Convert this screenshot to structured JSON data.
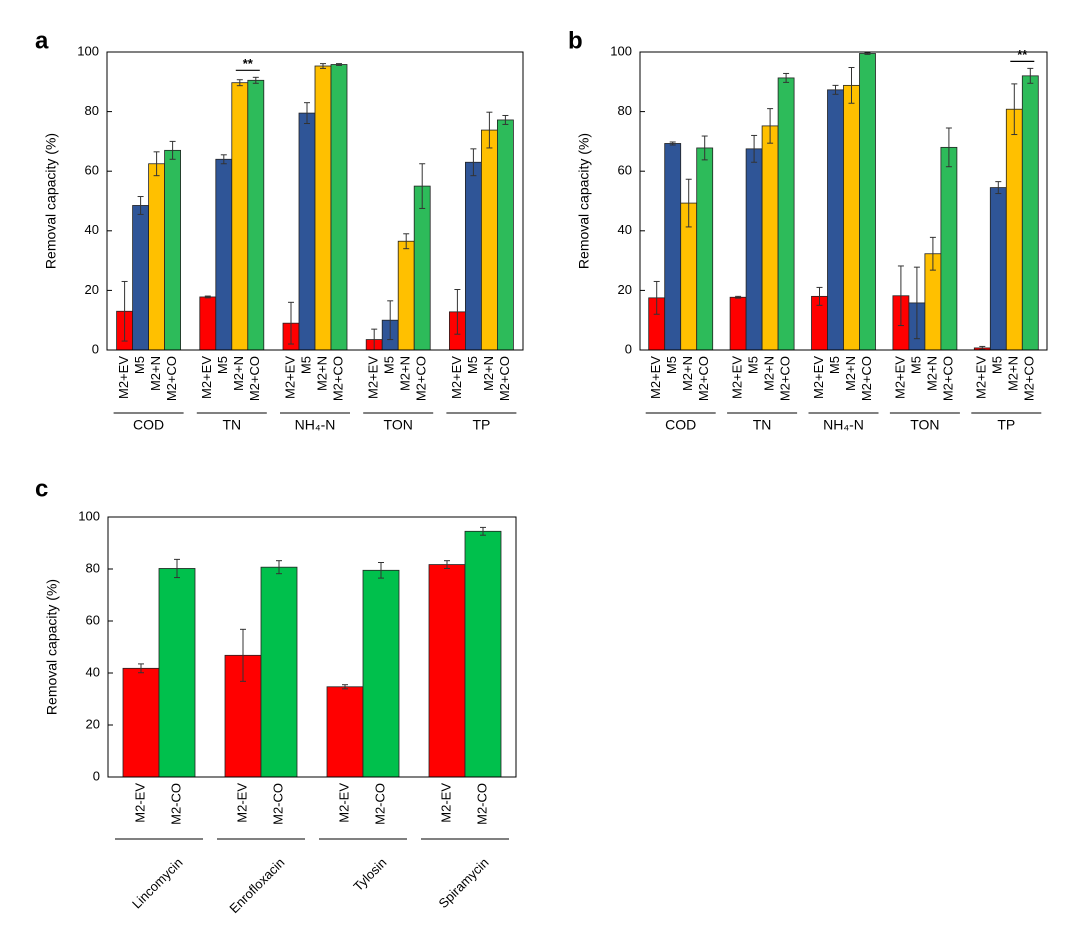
{
  "chart_data": [
    {
      "type": "bar",
      "panel": "a",
      "ylabel": "Removal capacity (%)",
      "categories": [
        "COD",
        "TN",
        "NH₄-N",
        "TON",
        "TP"
      ],
      "series": [
        {
          "name": "M2+EV",
          "color": "#ff0000",
          "values": [
            13,
            17.8,
            9,
            3.5,
            12.8
          ],
          "errors": [
            10,
            0.3,
            7,
            3.5,
            7.5
          ]
        },
        {
          "name": "M5",
          "color": "#2f5597",
          "values": [
            48.5,
            64,
            79.5,
            10,
            63
          ],
          "errors": [
            3,
            1.5,
            3.5,
            6.5,
            4.5
          ]
        },
        {
          "name": "M2+N",
          "color": "#ffc000",
          "values": [
            62.5,
            89.7,
            95.3,
            36.5,
            73.8
          ],
          "errors": [
            4,
            1,
            0.8,
            2.5,
            6
          ]
        },
        {
          "name": "M2+CO",
          "color": "#2dbb5a",
          "values": [
            67,
            90.5,
            95.8,
            55,
            77.2
          ],
          "errors": [
            3,
            1,
            0.3,
            7.5,
            1.5
          ]
        }
      ],
      "ylim": [
        0,
        100
      ],
      "yticks": [
        0,
        20,
        40,
        60,
        80,
        100
      ],
      "annotation": {
        "text": "**",
        "category": "TN",
        "between": [
          "M2+N",
          "M2+CO"
        ]
      }
    },
    {
      "type": "bar",
      "panel": "b",
      "ylabel": "Removal capacity (%)",
      "categories": [
        "COD",
        "TN",
        "NH₄-N",
        "TON",
        "TP"
      ],
      "series": [
        {
          "name": "M2+EV",
          "color": "#ff0000",
          "values": [
            17.5,
            17.7,
            18,
            18.2,
            0.7
          ],
          "errors": [
            5.5,
            0.3,
            3,
            10,
            0.5
          ]
        },
        {
          "name": "M5",
          "color": "#2f5597",
          "values": [
            69.3,
            67.5,
            87.3,
            15.8,
            54.5
          ],
          "errors": [
            0.5,
            4.5,
            1.5,
            12,
            2
          ]
        },
        {
          "name": "M2+N",
          "color": "#ffc000",
          "values": [
            49.3,
            75.2,
            88.8,
            32.3,
            80.8
          ],
          "errors": [
            8,
            5.8,
            6,
            5.5,
            8.5
          ]
        },
        {
          "name": "M2+CO",
          "color": "#2dbb5a",
          "values": [
            67.8,
            91.3,
            99.5,
            68,
            92
          ],
          "errors": [
            4,
            1.5,
            0.3,
            6.5,
            2.5
          ]
        }
      ],
      "ylim": [
        0,
        100
      ],
      "yticks": [
        0,
        20,
        40,
        60,
        80,
        100
      ],
      "annotation": {
        "text": "**",
        "category": "TP",
        "between": [
          "M2+N",
          "M2+CO"
        ]
      }
    },
    {
      "type": "bar",
      "panel": "c",
      "ylabel": "Removal capacity (%)",
      "categories": [
        "Lincomycin",
        "Enrofloxacin",
        "Tylosin",
        "Spiramycin"
      ],
      "series": [
        {
          "name": "M2-EV",
          "color": "#ff0000",
          "values": [
            41.8,
            46.8,
            34.7,
            81.7
          ],
          "errors": [
            1.7,
            10,
            0.8,
            1.5
          ]
        },
        {
          "name": "M2-CO",
          "color": "#00c04c",
          "values": [
            80.2,
            80.7,
            79.5,
            94.5
          ],
          "errors": [
            3.5,
            2.5,
            3,
            1.5
          ]
        }
      ],
      "ylim": [
        0,
        100
      ],
      "yticks": [
        0,
        20,
        40,
        60,
        80,
        100
      ]
    }
  ]
}
